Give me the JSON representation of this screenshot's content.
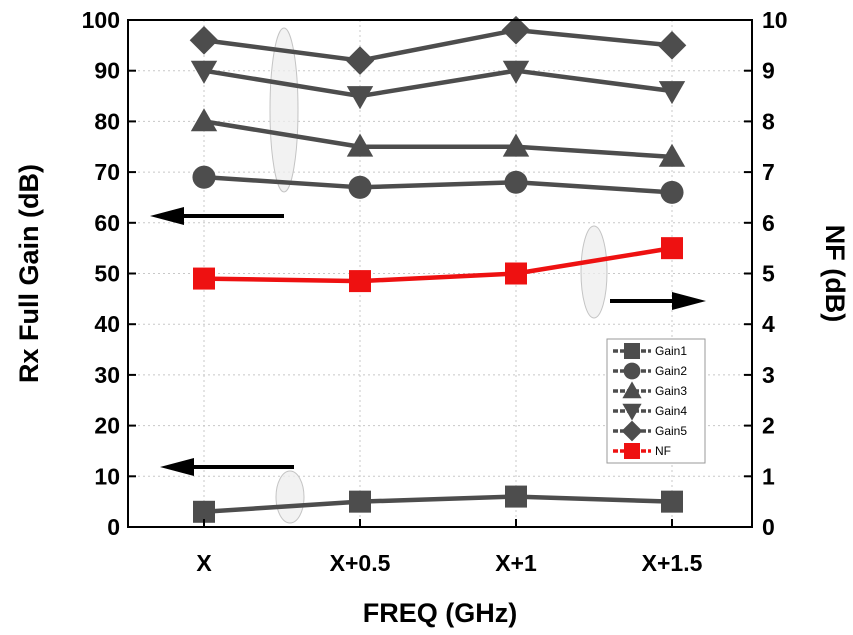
{
  "chart_data": {
    "type": "line",
    "title": "",
    "xlabel": "FREQ (GHz)",
    "ylabel_left": "Rx Full Gain (dB)",
    "ylabel_right": "NF (dB)",
    "categories": [
      "X",
      "X+0.5",
      "X+1",
      "X+1.5"
    ],
    "ylim_left": [
      0,
      100
    ],
    "ylim_right": [
      0,
      10
    ],
    "yticks_left": [
      "0",
      "10",
      "20",
      "30",
      "40",
      "50",
      "60",
      "70",
      "80",
      "90",
      "100"
    ],
    "yticks_right": [
      "0",
      "1",
      "2",
      "3",
      "4",
      "5",
      "6",
      "7",
      "8",
      "9",
      "10"
    ],
    "grid": true,
    "legend_position": "lower-right",
    "series": [
      {
        "name": "Gain1",
        "axis": "left",
        "marker": "square",
        "color": "#4d4d4d",
        "values": [
          3,
          5,
          6,
          5
        ]
      },
      {
        "name": "Gain2",
        "axis": "left",
        "marker": "circle",
        "color": "#4d4d4d",
        "values": [
          69,
          67,
          68,
          66
        ]
      },
      {
        "name": "Gain3",
        "axis": "left",
        "marker": "triangle-up",
        "color": "#4d4d4d",
        "values": [
          80,
          75,
          75,
          73
        ]
      },
      {
        "name": "Gain4",
        "axis": "left",
        "marker": "triangle-down",
        "color": "#4d4d4d",
        "values": [
          90,
          85,
          90,
          86
        ]
      },
      {
        "name": "Gain5",
        "axis": "left",
        "marker": "diamond",
        "color": "#4d4d4d",
        "values": [
          96,
          92,
          98,
          95
        ]
      },
      {
        "name": "NF",
        "axis": "right",
        "marker": "square",
        "color": "#ee1111",
        "values": [
          4.9,
          4.85,
          5.0,
          5.5
        ]
      }
    ]
  }
}
